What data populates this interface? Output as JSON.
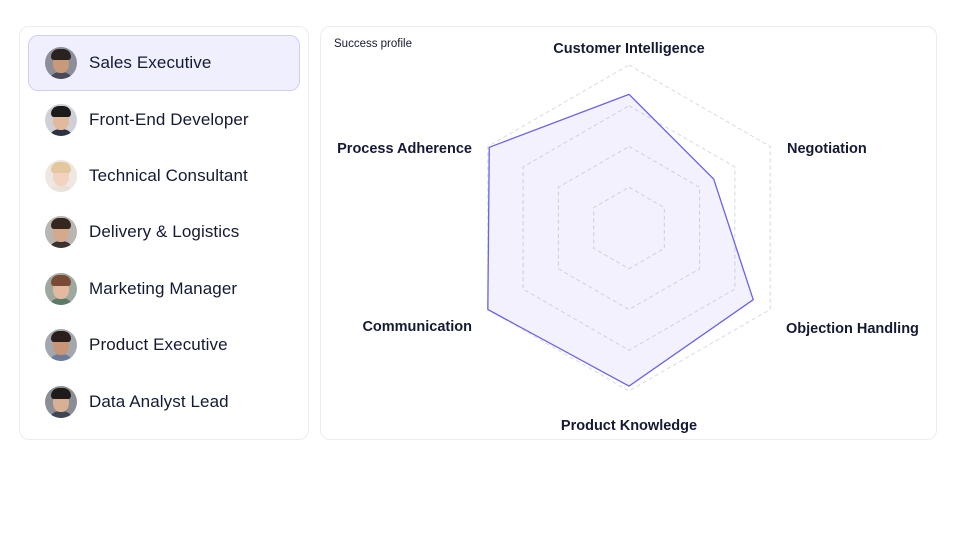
{
  "roles": [
    {
      "label": "Sales Executive",
      "selected": true,
      "avatar": {
        "skin": "#c99a7a",
        "hair": "#2a2220",
        "shirt": "#4a4a5a",
        "bg": "#8d8f98"
      }
    },
    {
      "label": "Front-End Developer",
      "selected": false,
      "avatar": {
        "skin": "#e2b99a",
        "hair": "#1c1a1a",
        "shirt": "#2e3140",
        "bg": "#cfd0d6"
      }
    },
    {
      "label": "Technical Consultant",
      "selected": false,
      "avatar": {
        "skin": "#f1d3bf",
        "hair": "#e3c79e",
        "shirt": "#e8e2da",
        "bg": "#efe7e1"
      }
    },
    {
      "label": "Delivery & Logistics",
      "selected": false,
      "avatar": {
        "skin": "#d4a98c",
        "hair": "#33271f",
        "shirt": "#3a3230",
        "bg": "#b9b5b2"
      }
    },
    {
      "label": "Marketing Manager",
      "selected": false,
      "avatar": {
        "skin": "#e4b9a0",
        "hair": "#7a4b34",
        "shirt": "#5c7a6a",
        "bg": "#9da89f"
      }
    },
    {
      "label": "Product Executive",
      "selected": false,
      "avatar": {
        "skin": "#c99577",
        "hair": "#2b1f1b",
        "shirt": "#6c7c99",
        "bg": "#a3a7ae"
      }
    },
    {
      "label": "Data Analyst Lead",
      "selected": false,
      "avatar": {
        "skin": "#d8b094",
        "hair": "#1e1b1a",
        "shirt": "#3f4552",
        "bg": "#8b8e94"
      }
    }
  ],
  "chart_panel": {
    "title": "Success profile"
  },
  "colors": {
    "series_stroke": "#6b63e8",
    "series_fill": "rgba(124,116,235,0.10)",
    "grid": "#d6d6dc"
  },
  "chart_data": {
    "type": "radar",
    "axes": [
      "Customer Intelligence",
      "Negotiation",
      "Objection Handling",
      "Product Knowledge",
      "Communication",
      "Process Adherence"
    ],
    "range": [
      0,
      1
    ],
    "grid_levels": 4,
    "series": [
      {
        "values": [
          0.82,
          0.6,
          0.88,
          0.97,
          1.0,
          0.99
        ]
      }
    ]
  }
}
